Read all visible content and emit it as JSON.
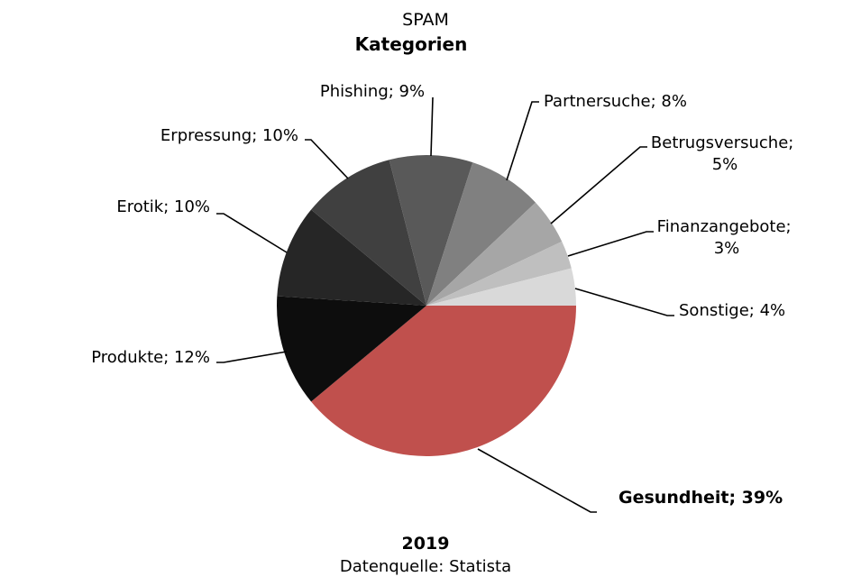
{
  "chart_data": {
    "type": "pie",
    "subtitle": "SPAM",
    "title": "Kategorien",
    "year": "2019",
    "source": "Datenquelle: Statista",
    "slices": [
      {
        "label": "Gesundheit; 39%",
        "value": 39,
        "color": "#c0504d"
      },
      {
        "label": "Produkte; 12%",
        "value": 12,
        "color": "#0d0d0d"
      },
      {
        "label": "Erotik; 10%",
        "value": 10,
        "color": "#262626"
      },
      {
        "label": "Erpressung; 10%",
        "value": 10,
        "color": "#404040"
      },
      {
        "label": "Phishing; 9%",
        "value": 9,
        "color": "#595959"
      },
      {
        "label": "Partnersuche; 8%",
        "value": 8,
        "color": "#808080"
      },
      {
        "label": "Betrugsversuche; 5%",
        "value": 5,
        "color": "#a6a6a6"
      },
      {
        "label": "Finanzangebote; 3%",
        "value": 3,
        "color": "#bfbfbf"
      },
      {
        "label": "Sonstige; 4%",
        "value": 4,
        "color": "#d9d9d9"
      }
    ]
  }
}
